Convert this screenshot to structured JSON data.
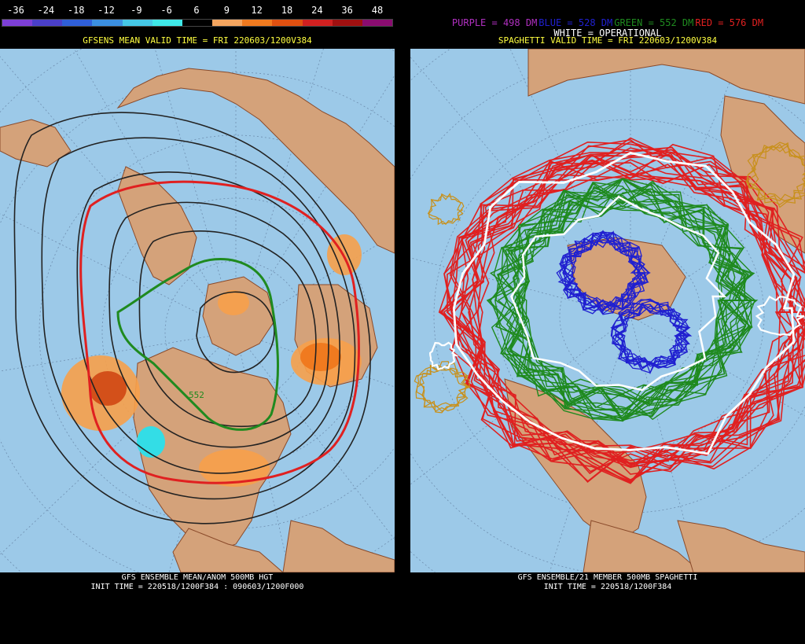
{
  "left_panel": {
    "scale": {
      "labels": [
        "-36",
        "-24",
        "-18",
        "-12",
        "-9",
        "-6",
        "6",
        "9",
        "12",
        "18",
        "24",
        "36",
        "48"
      ],
      "colors": [
        "#7d3fd6",
        "#4a3fc9",
        "#2f5fd8",
        "#3b8fe0",
        "#45c7e6",
        "#3fe8e8",
        "#000000",
        "#f4a55f",
        "#f07a1f",
        "#e05010",
        "#d02020",
        "#a01010",
        "#8a0c70"
      ]
    },
    "valid_line": "GFSENS MEAN VALID TIME = FRI 220603/1200V384",
    "footer_line1": "GFS ENSEMBLE MEAN/ANOM 500MB HGT",
    "footer_line2": "INIT TIME = 220518/1200F384 : 090603/1200F000",
    "contour_label": "552",
    "colors": {
      "ocean": "#9cc9e8",
      "land": "#d4a27a",
      "border": "#8a4a2a",
      "contour_black": "#222222",
      "contour_green": "#1f8a1f",
      "contour_red": "#e02020",
      "anom_light": "#f7a04a",
      "anom_dark": "#d3501a",
      "anom_neg": "#33dde6"
    }
  },
  "right_panel": {
    "legend": [
      {
        "text": "PURPLE = 498 DM",
        "color": "#b030c0"
      },
      {
        "text": "BLUE = 528 DM",
        "color": "#2020d0"
      },
      {
        "text": "GREEN = 552 DM",
        "color": "#1f8a1f"
      },
      {
        "text": "RED = 576 DM",
        "color": "#e02020"
      }
    ],
    "operational": "WHITE = OPERATIONAL",
    "valid_line": "SPAGHETTI VALID TIME = FRI 220603/1200V384",
    "footer_line1": "GFS ENSEMBLE/21 MEMBER 500MB SPAGHETTI",
    "footer_line2": "INIT TIME = 220518/1200F384",
    "colors": {
      "ocean": "#9cc9e8",
      "land": "#d4a27a",
      "border": "#8a4a2a",
      "white": "#ffffff",
      "blue": "#2020d0",
      "green": "#1f8a1f",
      "red": "#e02020",
      "gold": "#c8901a"
    }
  }
}
